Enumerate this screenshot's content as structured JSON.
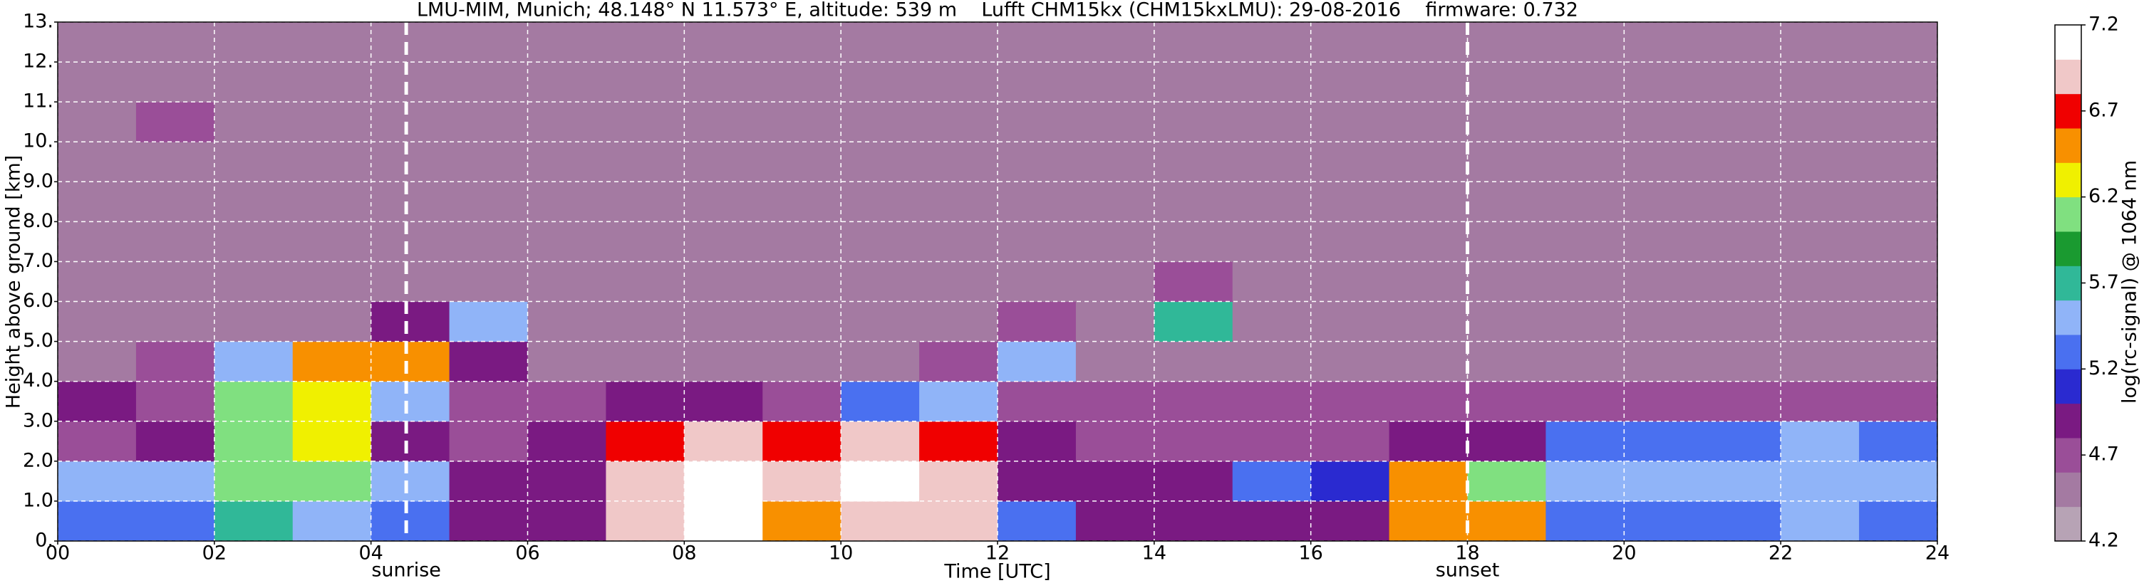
{
  "chart_data": {
    "type": "heatmap",
    "title": "LMU-MIM, Munich; 48.148° N 11.573° E, altitude: 539 m    Lufft CHM15kx (CHM15kxLMU): 29-08-2016    firmware: 0.732",
    "xlabel": "Time [UTC]",
    "ylabel": "Height above ground [km]",
    "colorbar_label": "log(rc-signal) @ 1064 nm",
    "xlim": [
      0,
      24
    ],
    "ylim": [
      0,
      13
    ],
    "xticks": [
      {
        "value": 0,
        "label": "00"
      },
      {
        "value": 2,
        "label": "02"
      },
      {
        "value": 4,
        "label": "04"
      },
      {
        "value": 6,
        "label": "06"
      },
      {
        "value": 8,
        "label": "08"
      },
      10,
      12,
      14,
      16,
      18,
      20,
      22,
      24
    ],
    "yticks": [
      {
        "value": 0,
        "label": "0."
      },
      {
        "value": 1,
        "label": "1.0"
      },
      {
        "value": 2,
        "label": "2.0"
      },
      {
        "value": 3,
        "label": "3.0"
      },
      {
        "value": 4,
        "label": "4.0"
      },
      {
        "value": 5,
        "label": "5.0"
      },
      {
        "value": 6,
        "label": "6.0"
      },
      {
        "value": 7,
        "label": "7.0"
      },
      {
        "value": 8,
        "label": "8.0"
      },
      {
        "value": 9,
        "label": "9.0"
      },
      {
        "value": 10,
        "label": "10."
      },
      {
        "value": 11,
        "label": "11."
      },
      {
        "value": 12,
        "label": "12."
      },
      {
        "value": 13,
        "label": "13."
      }
    ],
    "grid": true,
    "clim": [
      4.2,
      7.2
    ],
    "cticks": [
      4.2,
      4.7,
      5.2,
      5.7,
      6.2,
      6.7,
      7.2
    ],
    "colorscale": [
      "#b7a3b5",
      "#a47aa2",
      "#9a4e98",
      "#7a1a82",
      "#2a2ad0",
      "#4a70f0",
      "#90b4f8",
      "#30b898",
      "#1a9a30",
      "#80e080",
      "#f0f000",
      "#f89000",
      "#f00000",
      "#f0c8c8",
      "#ffffff"
    ],
    "annotations": [
      {
        "x": 4.45,
        "label": "sunrise"
      },
      {
        "x": 18.0,
        "label": "sunset"
      }
    ],
    "z": [
      [
        5.2,
        5.2,
        5.8,
        5.6,
        5.2,
        5.0,
        5.0,
        7.0,
        7.2,
        6.5,
        7.0,
        7.0,
        5.2,
        5.0,
        4.9,
        5.0,
        5.0,
        6.5,
        6.5,
        5.3,
        5.3,
        5.3,
        5.4,
        5.3
      ],
      [
        5.5,
        5.5,
        6.0,
        6.0,
        5.4,
        5.0,
        5.0,
        7.0,
        7.2,
        7.0,
        7.2,
        7.0,
        5.0,
        4.9,
        4.9,
        5.2,
        5.1,
        6.5,
        6.0,
        5.5,
        5.5,
        5.5,
        5.5,
        5.5
      ],
      [
        4.8,
        4.9,
        6.0,
        6.2,
        4.9,
        4.8,
        5.0,
        6.8,
        7.0,
        6.8,
        7.0,
        6.8,
        5.0,
        4.8,
        4.8,
        4.8,
        4.8,
        4.9,
        5.0,
        5.3,
        5.2,
        5.3,
        5.4,
        5.3
      ],
      [
        5.0,
        4.8,
        6.0,
        6.2,
        5.5,
        4.7,
        4.7,
        4.9,
        5.0,
        4.8,
        5.2,
        5.5,
        4.8,
        4.7,
        4.7,
        4.7,
        4.7,
        4.7,
        4.7,
        4.7,
        4.7,
        4.7,
        4.7,
        4.7
      ],
      [
        4.6,
        4.7,
        5.5,
        6.5,
        6.5,
        5.0,
        4.6,
        4.6,
        4.6,
        4.6,
        4.6,
        4.7,
        5.5,
        4.6,
        4.6,
        4.6,
        4.6,
        4.6,
        4.6,
        4.6,
        4.6,
        4.6,
        4.6,
        4.6
      ],
      [
        4.6,
        4.6,
        4.6,
        4.6,
        5.0,
        5.5,
        4.6,
        4.6,
        4.6,
        4.6,
        4.6,
        4.6,
        4.7,
        4.6,
        5.8,
        4.6,
        4.6,
        4.6,
        4.6,
        4.6,
        4.6,
        4.6,
        4.6,
        4.6
      ],
      [
        4.6,
        4.6,
        4.6,
        4.6,
        4.6,
        4.6,
        4.6,
        4.6,
        4.6,
        4.6,
        4.6,
        4.6,
        4.6,
        4.6,
        4.7,
        4.6,
        4.6,
        4.6,
        4.6,
        4.6,
        4.6,
        4.6,
        4.6,
        4.6
      ],
      [
        4.6,
        4.6,
        4.6,
        4.6,
        4.6,
        4.6,
        4.6,
        4.6,
        4.6,
        4.6,
        4.6,
        4.6,
        4.6,
        4.6,
        4.6,
        4.6,
        4.6,
        4.6,
        4.6,
        4.6,
        4.6,
        4.6,
        4.6,
        4.6
      ],
      [
        4.6,
        4.6,
        4.6,
        4.6,
        4.6,
        4.6,
        4.6,
        4.6,
        4.6,
        4.6,
        4.6,
        4.6,
        4.6,
        4.6,
        4.6,
        4.6,
        4.6,
        4.6,
        4.6,
        4.6,
        4.6,
        4.6,
        4.6,
        4.6
      ],
      [
        4.6,
        4.6,
        4.6,
        4.6,
        4.6,
        4.6,
        4.6,
        4.6,
        4.6,
        4.6,
        4.6,
        4.6,
        4.6,
        4.6,
        4.6,
        4.6,
        4.6,
        4.6,
        4.6,
        4.6,
        4.6,
        4.6,
        4.6,
        4.6
      ],
      [
        4.6,
        4.7,
        4.6,
        4.6,
        4.6,
        4.6,
        4.6,
        4.6,
        4.6,
        4.6,
        4.6,
        4.6,
        4.6,
        4.6,
        4.6,
        4.6,
        4.6,
        4.6,
        4.6,
        4.6,
        4.6,
        4.6,
        4.6,
        4.6
      ],
      [
        4.6,
        4.6,
        4.6,
        4.6,
        4.6,
        4.6,
        4.6,
        4.6,
        4.6,
        4.6,
        4.6,
        4.6,
        4.6,
        4.6,
        4.6,
        4.6,
        4.6,
        4.6,
        4.6,
        4.6,
        4.6,
        4.6,
        4.6,
        4.6
      ],
      [
        4.6,
        4.6,
        4.6,
        4.6,
        4.6,
        4.6,
        4.6,
        4.6,
        4.6,
        4.6,
        4.6,
        4.6,
        4.6,
        4.6,
        4.6,
        4.6,
        4.6,
        4.6,
        4.6,
        4.6,
        4.6,
        4.6,
        4.6,
        4.6
      ]
    ]
  }
}
